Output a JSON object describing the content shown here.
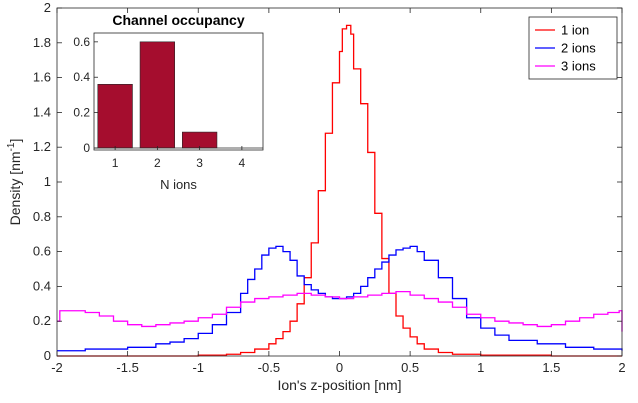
{
  "chart_data": [
    {
      "type": "line",
      "step": true,
      "xlabel": "Ion's z-position [nm]",
      "ylabel_base": "Density [nm",
      "ylabel_sup": "-1",
      "ylabel_end": "]",
      "xlim": [
        -2,
        2
      ],
      "ylim": [
        0,
        2
      ],
      "xticks": [
        -2,
        -1.5,
        -1,
        -0.5,
        0,
        0.5,
        1,
        1.5,
        2
      ],
      "xtick_labels": [
        "-2",
        "-1.5",
        "-1",
        "-0.5",
        "0",
        "0.5",
        "1",
        "1.5",
        "2"
      ],
      "yticks": [
        0,
        0.2,
        0.4,
        0.6,
        0.8,
        1,
        1.2,
        1.4,
        1.6,
        1.8,
        2
      ],
      "ytick_labels": [
        "0",
        "0.2",
        "0.4",
        "0.6",
        "0.8",
        "1",
        "1.2",
        "1.4",
        "1.6",
        "1.8",
        "2"
      ],
      "grid": false,
      "legend_position": "top-right",
      "series": [
        {
          "name": "1 ion",
          "color": "#ff0000",
          "points": [
            [
              -2,
              0
            ],
            [
              -1.5,
              0
            ],
            [
              -1,
              0.005
            ],
            [
              -0.8,
              0.01
            ],
            [
              -0.7,
              0.02
            ],
            [
              -0.6,
              0.04
            ],
            [
              -0.5,
              0.07
            ],
            [
              -0.45,
              0.1
            ],
            [
              -0.4,
              0.14
            ],
            [
              -0.35,
              0.2
            ],
            [
              -0.3,
              0.3
            ],
            [
              -0.25,
              0.45
            ],
            [
              -0.2,
              0.65
            ],
            [
              -0.15,
              0.95
            ],
            [
              -0.1,
              1.28
            ],
            [
              -0.05,
              1.57
            ],
            [
              0,
              1.75
            ],
            [
              0.02,
              1.88
            ],
            [
              0.05,
              1.9
            ],
            [
              0.08,
              1.85
            ],
            [
              0.1,
              1.65
            ],
            [
              0.15,
              1.45
            ],
            [
              0.2,
              1.17
            ],
            [
              0.25,
              0.82
            ],
            [
              0.3,
              0.56
            ],
            [
              0.35,
              0.36
            ],
            [
              0.4,
              0.23
            ],
            [
              0.45,
              0.16
            ],
            [
              0.5,
              0.11
            ],
            [
              0.55,
              0.07
            ],
            [
              0.6,
              0.04
            ],
            [
              0.7,
              0.02
            ],
            [
              0.8,
              0.01
            ],
            [
              1,
              0.005
            ],
            [
              1.5,
              0
            ],
            [
              2,
              0
            ]
          ]
        },
        {
          "name": "2 ions",
          "color": "#0000ff",
          "points": [
            [
              -2,
              0.03
            ],
            [
              -1.9,
              0.03
            ],
            [
              -1.8,
              0.04
            ],
            [
              -1.5,
              0.05
            ],
            [
              -1.3,
              0.07
            ],
            [
              -1.2,
              0.08
            ],
            [
              -1.1,
              0.1
            ],
            [
              -1,
              0.13
            ],
            [
              -0.9,
              0.18
            ],
            [
              -0.8,
              0.25
            ],
            [
              -0.7,
              0.36
            ],
            [
              -0.65,
              0.44
            ],
            [
              -0.6,
              0.5
            ],
            [
              -0.55,
              0.58
            ],
            [
              -0.5,
              0.62
            ],
            [
              -0.45,
              0.63
            ],
            [
              -0.4,
              0.6
            ],
            [
              -0.35,
              0.55
            ],
            [
              -0.3,
              0.46
            ],
            [
              -0.25,
              0.41
            ],
            [
              -0.2,
              0.38
            ],
            [
              -0.15,
              0.36
            ],
            [
              -0.1,
              0.34
            ],
            [
              -0.05,
              0.33
            ],
            [
              0,
              0.33
            ],
            [
              0.05,
              0.34
            ],
            [
              0.1,
              0.36
            ],
            [
              0.15,
              0.4
            ],
            [
              0.2,
              0.45
            ],
            [
              0.25,
              0.5
            ],
            [
              0.3,
              0.54
            ],
            [
              0.35,
              0.58
            ],
            [
              0.4,
              0.61
            ],
            [
              0.45,
              0.62
            ],
            [
              0.5,
              0.63
            ],
            [
              0.55,
              0.6
            ],
            [
              0.6,
              0.55
            ],
            [
              0.7,
              0.45
            ],
            [
              0.8,
              0.33
            ],
            [
              0.9,
              0.22
            ],
            [
              1,
              0.16
            ],
            [
              1.1,
              0.12
            ],
            [
              1.2,
              0.09
            ],
            [
              1.4,
              0.07
            ],
            [
              1.6,
              0.05
            ],
            [
              1.8,
              0.04
            ],
            [
              2,
              0.03
            ]
          ]
        },
        {
          "name": "3 ions",
          "color": "#ff00ff",
          "points": [
            [
              -2,
              0.2
            ],
            [
              -1.98,
              0.26
            ],
            [
              -1.9,
              0.26
            ],
            [
              -1.8,
              0.25
            ],
            [
              -1.7,
              0.23
            ],
            [
              -1.6,
              0.2
            ],
            [
              -1.5,
              0.18
            ],
            [
              -1.4,
              0.17
            ],
            [
              -1.3,
              0.18
            ],
            [
              -1.2,
              0.19
            ],
            [
              -1.1,
              0.2
            ],
            [
              -1,
              0.22
            ],
            [
              -0.9,
              0.24
            ],
            [
              -0.8,
              0.28
            ],
            [
              -0.7,
              0.31
            ],
            [
              -0.6,
              0.33
            ],
            [
              -0.5,
              0.34
            ],
            [
              -0.4,
              0.35
            ],
            [
              -0.3,
              0.36
            ],
            [
              -0.2,
              0.35
            ],
            [
              -0.1,
              0.34
            ],
            [
              0,
              0.33
            ],
            [
              0.1,
              0.34
            ],
            [
              0.2,
              0.35
            ],
            [
              0.3,
              0.36
            ],
            [
              0.4,
              0.37
            ],
            [
              0.5,
              0.35
            ],
            [
              0.6,
              0.33
            ],
            [
              0.7,
              0.31
            ],
            [
              0.8,
              0.28
            ],
            [
              0.9,
              0.24
            ],
            [
              1,
              0.22
            ],
            [
              1.1,
              0.2
            ],
            [
              1.2,
              0.19
            ],
            [
              1.3,
              0.18
            ],
            [
              1.4,
              0.17
            ],
            [
              1.5,
              0.18
            ],
            [
              1.6,
              0.2
            ],
            [
              1.7,
              0.22
            ],
            [
              1.8,
              0.24
            ],
            [
              1.9,
              0.25
            ],
            [
              1.98,
              0.26
            ],
            [
              2,
              0.14
            ]
          ]
        }
      ]
    },
    {
      "type": "bar",
      "title": "Channel occupancy",
      "xlabel": "N ions",
      "ylabel": "",
      "categories": [
        "1",
        "2",
        "3",
        "4"
      ],
      "values": [
        0.36,
        0.6,
        0.09,
        0
      ],
      "ylim": [
        0,
        0.65
      ],
      "yticks": [
        0,
        0.2,
        0.4,
        0.6
      ],
      "ytick_labels": [
        "0",
        "0.2",
        "0.4",
        "0.6"
      ],
      "bar_color": "#a50d2e",
      "grid": false
    }
  ]
}
